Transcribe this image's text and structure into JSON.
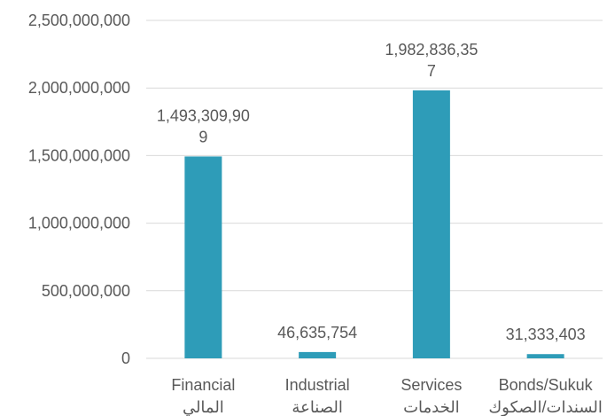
{
  "chart_data": {
    "type": "bar",
    "title": "",
    "xlabel": "",
    "ylabel": "",
    "categories": [
      [
        "Financial",
        "المالي"
      ],
      [
        "Industrial",
        "الصناعة"
      ],
      [
        "Services",
        "الخدمات"
      ],
      [
        "Bonds/Sukuk",
        "السندات/الصكوك"
      ]
    ],
    "values": [
      1493309909,
      46635754,
      1982836357,
      31333403
    ],
    "data_labels": [
      [
        "1,493,309,90",
        "9"
      ],
      [
        "46,635,754"
      ],
      [
        "1,982,836,35",
        "7"
      ],
      [
        "31,333,403"
      ]
    ],
    "ylim": [
      0,
      2500000000
    ],
    "yticks": [
      0,
      500000000,
      1000000000,
      1500000000,
      2000000000,
      2500000000
    ],
    "ytick_labels": [
      "0",
      "500,000,000",
      "1,000,000,000",
      "1,500,000,000",
      "2,000,000,000",
      "2,500,000,000"
    ],
    "grid": true,
    "legend": "none",
    "bar_color": "#2e9cb8",
    "text_color": "#595959",
    "grid_color": "#d9d9d9"
  }
}
